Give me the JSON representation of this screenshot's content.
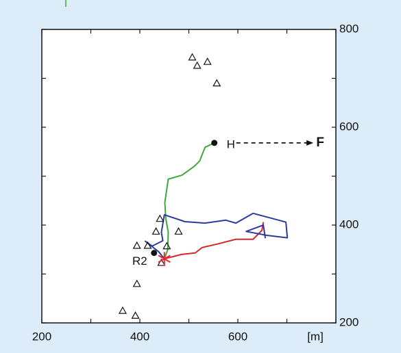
{
  "chart_data": {
    "type": "line",
    "xlim": [
      200,
      800
    ],
    "ylim": [
      200,
      800
    ],
    "xticks": [
      200,
      400,
      600
    ],
    "yticks": [
      200,
      400,
      600,
      800
    ],
    "xminorticks": [
      300,
      500,
      700,
      800
    ],
    "yminorticks": [
      300,
      500,
      700
    ],
    "xlabel": "[m]",
    "series": [
      {
        "color": "#3aa935",
        "x": [
          450,
          457,
          458,
          453,
          451,
          458,
          486,
          511,
          522,
          533,
          552
        ],
        "y": [
          331,
          350,
          385,
          413,
          446,
          494,
          502,
          520,
          531,
          559,
          568
        ]
      },
      {
        "color": "#d7262c",
        "x": [
          450,
          485,
          513,
          527,
          561,
          596,
          631,
          649,
          652
        ],
        "y": [
          331,
          340,
          343,
          354,
          362,
          371,
          371,
          389,
          406
        ]
      },
      {
        "color": "#2b3a9e",
        "x": [
          450,
          439,
          411,
          425,
          447,
          444,
          450,
          492,
          533,
          575,
          596,
          631,
          698,
          701,
          659,
          617,
          652,
          656
        ],
        "y": [
          331,
          345,
          367,
          357,
          368,
          385,
          421,
          407,
          404,
          410,
          404,
          424,
          406,
          374,
          379,
          387,
          400,
          373
        ]
      }
    ],
    "triangles": {
      "x": [
        507,
        517,
        538,
        557,
        441,
        433,
        479,
        394,
        416,
        455,
        444,
        394,
        365,
        391
      ],
      "y": [
        743,
        726,
        734,
        690,
        413,
        387,
        387,
        358,
        358,
        357,
        323,
        280,
        225,
        215
      ]
    },
    "points": [
      {
        "label": "H",
        "x": 552,
        "y": 568
      },
      {
        "label": "R2",
        "x": 429,
        "y": 343
      }
    ],
    "start": {
      "x": 450,
      "y": 331,
      "color": "#e8262c"
    },
    "annotation": {
      "text": "F",
      "x": 768,
      "y": 568
    }
  }
}
